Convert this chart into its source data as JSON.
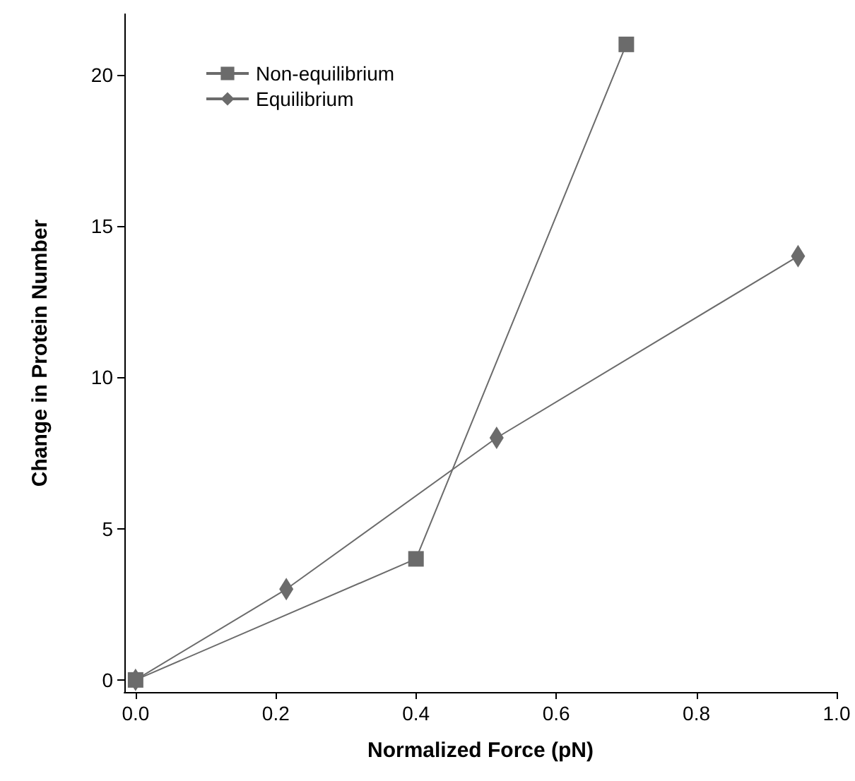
{
  "chart_data": {
    "type": "line",
    "xlabel": "Normalized Force (pN)",
    "ylabel": "Change in Protein Number",
    "xlim": [
      -0.016,
      1.0
    ],
    "xticks": [
      {
        "value": 0,
        "label": "0.0"
      },
      {
        "value": 0.2,
        "label": "0.2"
      },
      {
        "value": 0.4,
        "label": "0.4"
      },
      {
        "value": 0.6,
        "label": "0.6"
      },
      {
        "value": 0.8,
        "label": "0.8"
      },
      {
        "value": 1.0,
        "label": "1.0"
      }
    ],
    "ylim": [
      -0.4,
      22
    ],
    "yticks": [
      0,
      5,
      10,
      15,
      20
    ],
    "grid": false,
    "legend": "top left",
    "series": [
      {
        "name": "Non-equilibrium",
        "color": "#6b6b6b",
        "marker": "square",
        "x": [
          0,
          0.4,
          0.7
        ],
        "values": [
          0,
          4,
          21
        ]
      },
      {
        "name": "Equilibrium",
        "color": "#6b6b6b",
        "marker": "diamond",
        "x": [
          0,
          0.215,
          0.515,
          0.945
        ],
        "values": [
          0,
          3,
          8,
          14
        ]
      }
    ]
  }
}
